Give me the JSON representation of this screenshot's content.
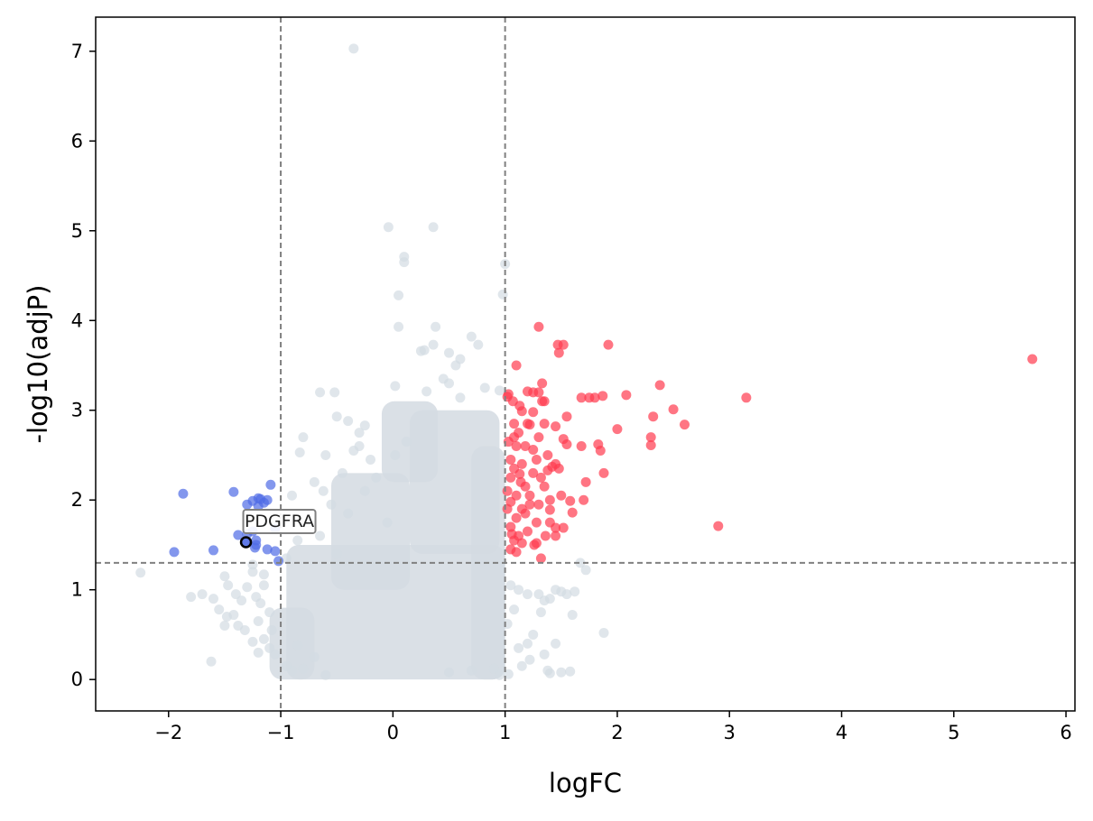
{
  "chart_data": {
    "type": "scatter",
    "title": "",
    "xlabel": "logFC",
    "ylabel": "-log10(adjP)",
    "xlim": [
      -2.65,
      6.08
    ],
    "ylim": [
      -0.35,
      7.38
    ],
    "xticks": [
      -2,
      -1,
      0,
      1,
      2,
      3,
      4,
      5,
      6
    ],
    "xtick_labels": [
      "−2",
      "−1",
      "0",
      "1",
      "2",
      "3",
      "4",
      "5",
      "6"
    ],
    "yticks": [
      0,
      1,
      2,
      3,
      4,
      5,
      6,
      7
    ],
    "ytick_labels": [
      "0",
      "1",
      "2",
      "3",
      "4",
      "5",
      "6",
      "7"
    ],
    "grid": false,
    "thresholds": {
      "logfc": [
        -1,
        1
      ],
      "neg_log10_adjp": 1.3
    },
    "colors": {
      "up": "#ff3b4e",
      "down": "#4f6be6",
      "not_significant": "#d3dbe2",
      "threshold_line": "#808080",
      "highlight_edge": "#000000"
    },
    "series": [
      {
        "category": "not_significant",
        "points": [
          [
            -0.35,
            7.03
          ],
          [
            -0.04,
            5.04
          ],
          [
            0.36,
            5.04
          ],
          [
            0.1,
            4.71
          ],
          [
            0.1,
            4.65
          ],
          [
            1.0,
            4.63
          ],
          [
            0.05,
            4.28
          ],
          [
            0.98,
            4.29
          ],
          [
            0.38,
            3.93
          ],
          [
            0.05,
            3.93
          ],
          [
            0.7,
            3.82
          ],
          [
            0.76,
            3.73
          ],
          [
            0.36,
            3.73
          ],
          [
            0.28,
            3.67
          ],
          [
            0.25,
            3.66
          ],
          [
            0.5,
            3.64
          ],
          [
            0.6,
            3.57
          ],
          [
            0.56,
            3.5
          ],
          [
            0.45,
            3.35
          ],
          [
            -0.65,
            3.2
          ],
          [
            -0.52,
            3.2
          ],
          [
            0.02,
            3.27
          ],
          [
            0.5,
            3.3
          ],
          [
            0.82,
            3.25
          ],
          [
            0.95,
            3.22
          ],
          [
            0.3,
            3.21
          ],
          [
            0.6,
            3.14
          ],
          [
            -0.5,
            2.93
          ],
          [
            -0.4,
            2.88
          ],
          [
            -0.25,
            2.83
          ],
          [
            -0.3,
            2.75
          ],
          [
            -0.35,
            2.55
          ],
          [
            -0.6,
            2.5
          ],
          [
            -0.8,
            2.7
          ],
          [
            -0.83,
            2.53
          ],
          [
            -0.7,
            2.2
          ],
          [
            -0.9,
            2.05
          ],
          [
            -0.62,
            2.1
          ],
          [
            -0.45,
            2.3
          ],
          [
            -0.55,
            1.95
          ],
          [
            -0.3,
            2.6
          ],
          [
            -0.2,
            2.45
          ],
          [
            -0.15,
            2.25
          ],
          [
            -0.05,
            1.75
          ],
          [
            0.02,
            2.5
          ],
          [
            0.12,
            2.65
          ],
          [
            -0.4,
            1.85
          ],
          [
            -0.25,
            2.1
          ],
          [
            -0.75,
            1.75
          ],
          [
            -0.85,
            1.55
          ],
          [
            -0.65,
            1.6
          ],
          [
            -0.95,
            1.35
          ],
          [
            -0.5,
            1.4
          ],
          [
            -1.15,
            1.17
          ],
          [
            -1.25,
            1.2
          ],
          [
            -1.5,
            1.15
          ],
          [
            -1.47,
            1.05
          ],
          [
            -1.3,
            1.03
          ],
          [
            -1.6,
            0.9
          ],
          [
            -1.7,
            0.95
          ],
          [
            -1.8,
            0.92
          ],
          [
            -1.55,
            0.78
          ],
          [
            -1.42,
            0.72
          ],
          [
            -1.38,
            0.6
          ],
          [
            -1.5,
            0.6
          ],
          [
            -1.32,
            0.55
          ],
          [
            -1.2,
            0.65
          ],
          [
            -1.15,
            0.45
          ],
          [
            -1.1,
            0.35
          ],
          [
            -1.05,
            0.28
          ],
          [
            -1.2,
            0.3
          ],
          [
            -1.25,
            0.42
          ],
          [
            -1.08,
            0.55
          ],
          [
            -1.1,
            0.75
          ],
          [
            -1.18,
            0.85
          ],
          [
            -1.22,
            0.92
          ],
          [
            -1.35,
            0.88
          ],
          [
            -1.62,
            0.2
          ],
          [
            -2.25,
            1.19
          ],
          [
            -1.25,
            1.28
          ],
          [
            -1.4,
            0.95
          ],
          [
            -1.48,
            0.7
          ],
          [
            -1.15,
            1.05
          ],
          [
            -0.95,
            0.15
          ],
          [
            -0.9,
            0.1
          ],
          [
            -0.8,
            0.12
          ],
          [
            -0.6,
            0.05
          ],
          [
            -0.7,
            0.25
          ],
          [
            -0.85,
            0.38
          ],
          [
            1.05,
            1.05
          ],
          [
            1.12,
            1.0
          ],
          [
            1.2,
            0.95
          ],
          [
            1.3,
            0.95
          ],
          [
            1.4,
            0.9
          ],
          [
            1.5,
            0.98
          ],
          [
            1.55,
            0.95
          ],
          [
            1.62,
            0.98
          ],
          [
            1.72,
            1.22
          ],
          [
            1.67,
            1.3
          ],
          [
            1.45,
            1.0
          ],
          [
            1.35,
            0.88
          ],
          [
            1.32,
            0.75
          ],
          [
            1.25,
            0.5
          ],
          [
            1.2,
            0.4
          ],
          [
            1.12,
            0.35
          ],
          [
            1.02,
            0.62
          ],
          [
            1.08,
            0.78
          ],
          [
            1.45,
            0.4
          ],
          [
            1.35,
            0.28
          ],
          [
            1.38,
            0.1
          ],
          [
            1.4,
            0.07
          ],
          [
            1.5,
            0.08
          ],
          [
            1.58,
            0.09
          ],
          [
            1.88,
            0.52
          ],
          [
            1.03,
            0.06
          ],
          [
            0.95,
            0.05
          ],
          [
            1.15,
            0.15
          ],
          [
            1.22,
            0.22
          ],
          [
            1.6,
            0.72
          ],
          [
            0.7,
            0.1
          ],
          [
            0.9,
            0.12
          ],
          [
            0.5,
            0.08
          ]
        ],
        "dense_regions": [
          {
            "x": [
              -0.95,
              1.0
            ],
            "y": [
              0.0,
              1.5
            ]
          },
          {
            "x": [
              0.15,
              0.95
            ],
            "y": [
              1.4,
              3.0
            ]
          },
          {
            "x": [
              -0.55,
              0.15
            ],
            "y": [
              1.0,
              2.3
            ]
          },
          {
            "x": [
              -0.1,
              0.4
            ],
            "y": [
              2.2,
              3.1
            ]
          },
          {
            "x": [
              -1.1,
              -0.7
            ],
            "y": [
              0.0,
              0.8
            ]
          },
          {
            "x": [
              0.7,
              1.0
            ],
            "y": [
              0.0,
              2.6
            ]
          }
        ]
      },
      {
        "category": "down",
        "points": [
          [
            -1.87,
            2.07
          ],
          [
            -1.42,
            2.09
          ],
          [
            -1.09,
            2.17
          ],
          [
            -1.2,
            2.02
          ],
          [
            -1.18,
            2.01
          ],
          [
            -1.25,
            1.99
          ],
          [
            -1.15,
            1.97
          ],
          [
            -1.2,
            1.93
          ],
          [
            -1.12,
            2.0
          ],
          [
            -1.3,
            1.95
          ],
          [
            -1.38,
            1.61
          ],
          [
            -1.3,
            1.62
          ],
          [
            -1.22,
            1.55
          ],
          [
            -1.23,
            1.47
          ],
          [
            -1.12,
            1.45
          ],
          [
            -1.05,
            1.43
          ],
          [
            -1.22,
            1.5
          ],
          [
            -1.95,
            1.42
          ],
          [
            -1.6,
            1.44
          ],
          [
            -1.25,
            1.65
          ],
          [
            -1.05,
            1.68
          ],
          [
            -1.02,
            1.32
          ]
        ]
      },
      {
        "category": "up",
        "points": [
          [
            5.7,
            3.57
          ],
          [
            3.15,
            3.14
          ],
          [
            2.9,
            1.71
          ],
          [
            2.6,
            2.84
          ],
          [
            2.5,
            3.01
          ],
          [
            2.38,
            3.28
          ],
          [
            2.32,
            2.93
          ],
          [
            2.3,
            2.7
          ],
          [
            2.3,
            2.61
          ],
          [
            2.08,
            3.17
          ],
          [
            2.0,
            2.79
          ],
          [
            1.92,
            3.73
          ],
          [
            1.88,
            2.3
          ],
          [
            1.87,
            3.16
          ],
          [
            1.85,
            2.55
          ],
          [
            1.83,
            2.62
          ],
          [
            1.8,
            3.14
          ],
          [
            1.75,
            3.14
          ],
          [
            1.7,
            2.0
          ],
          [
            1.72,
            2.2
          ],
          [
            1.68,
            3.14
          ],
          [
            1.68,
            2.6
          ],
          [
            1.6,
            1.86
          ],
          [
            1.58,
            1.99
          ],
          [
            1.55,
            2.62
          ],
          [
            1.52,
            2.68
          ],
          [
            1.55,
            2.93
          ],
          [
            1.52,
            1.69
          ],
          [
            1.52,
            3.73
          ],
          [
            1.48,
            3.64
          ],
          [
            1.47,
            3.73
          ],
          [
            1.45,
            1.6
          ],
          [
            1.45,
            2.82
          ],
          [
            1.45,
            1.69
          ],
          [
            1.42,
            2.37
          ],
          [
            1.4,
            1.89
          ],
          [
            1.38,
            2.33
          ],
          [
            1.35,
            3.1
          ],
          [
            1.33,
            3.1
          ],
          [
            1.3,
            3.93
          ],
          [
            1.32,
            1.35
          ],
          [
            1.28,
            1.52
          ],
          [
            1.25,
            2.98
          ],
          [
            1.25,
            2.56
          ],
          [
            1.22,
            2.84
          ],
          [
            1.2,
            2.85
          ],
          [
            1.18,
            2.6
          ],
          [
            1.2,
            3.21
          ],
          [
            1.15,
            2.99
          ],
          [
            1.13,
            3.05
          ],
          [
            1.13,
            2.29
          ],
          [
            1.1,
            3.5
          ],
          [
            1.08,
            2.7
          ],
          [
            1.05,
            1.98
          ],
          [
            1.03,
            3.18
          ],
          [
            1.02,
            3.15
          ],
          [
            1.05,
            2.45
          ],
          [
            1.08,
            2.35
          ],
          [
            1.1,
            1.8
          ],
          [
            1.12,
            1.6
          ],
          [
            1.05,
            1.45
          ],
          [
            1.3,
            3.2
          ],
          [
            1.33,
            3.3
          ],
          [
            1.25,
            3.2
          ],
          [
            1.18,
            2.15
          ],
          [
            1.22,
            1.95
          ],
          [
            1.35,
            2.15
          ],
          [
            1.4,
            2.0
          ],
          [
            1.28,
            1.75
          ],
          [
            1.15,
            1.9
          ],
          [
            1.1,
            2.05
          ],
          [
            1.05,
            1.7
          ],
          [
            1.08,
            1.55
          ],
          [
            1.15,
            1.52
          ],
          [
            1.2,
            1.65
          ],
          [
            1.38,
            2.5
          ],
          [
            1.3,
            2.7
          ],
          [
            1.28,
            2.45
          ],
          [
            1.35,
            2.85
          ],
          [
            1.25,
            2.3
          ],
          [
            1.15,
            2.4
          ],
          [
            1.1,
            2.6
          ],
          [
            1.05,
            2.25
          ],
          [
            1.02,
            1.9
          ],
          [
            1.08,
            2.85
          ],
          [
            1.12,
            2.75
          ],
          [
            1.22,
            2.05
          ],
          [
            1.3,
            1.95
          ],
          [
            1.32,
            2.25
          ],
          [
            1.4,
            1.75
          ],
          [
            1.45,
            2.4
          ],
          [
            1.5,
            2.05
          ],
          [
            1.48,
            2.35
          ],
          [
            1.03,
            2.65
          ],
          [
            1.18,
            1.85
          ],
          [
            1.06,
            1.62
          ],
          [
            1.1,
            1.42
          ],
          [
            1.14,
            2.2
          ],
          [
            1.26,
            1.5
          ],
          [
            1.36,
            1.6
          ],
          [
            1.02,
            2.1
          ],
          [
            1.07,
            3.1
          ]
        ]
      }
    ],
    "annotations": [
      {
        "label": "PDGFRA",
        "x": -1.31,
        "y": 1.53,
        "highlight": true
      }
    ]
  }
}
